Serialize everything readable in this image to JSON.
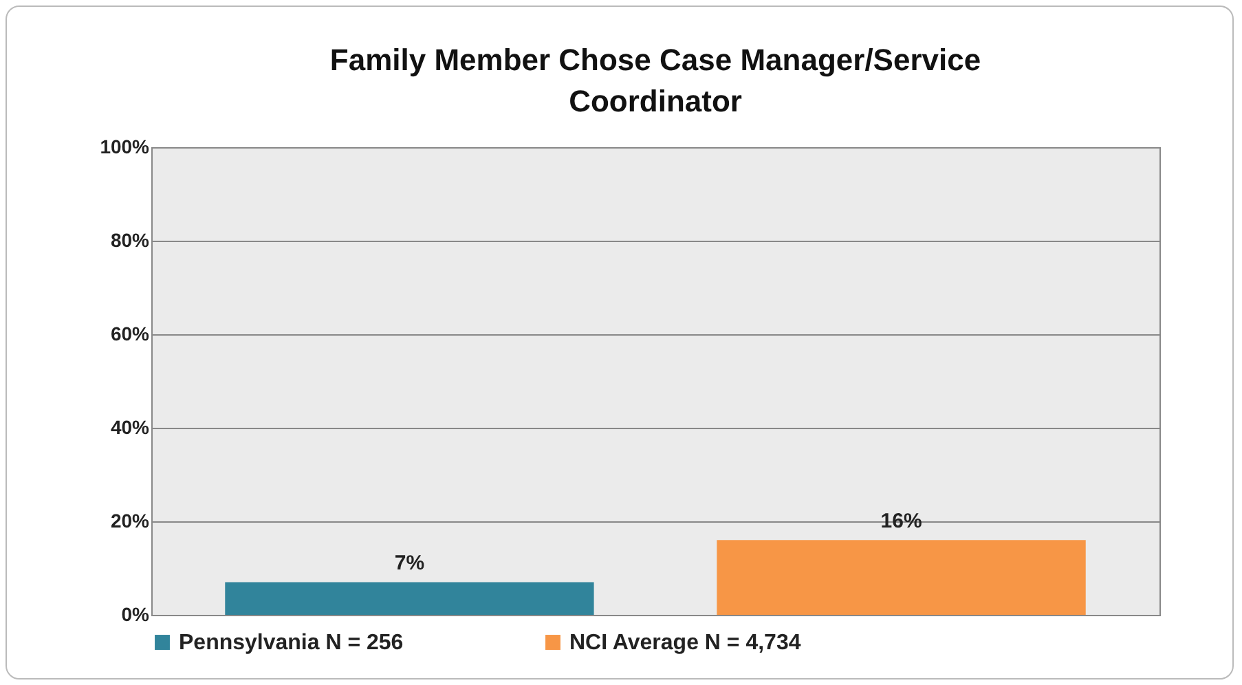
{
  "chart_data": {
    "type": "bar",
    "title": "Family Member Chose Case Manager/Service Coordinator",
    "categories": [
      null
    ],
    "series": [
      {
        "name": "Pennsylvania N = 256",
        "color": "#31849b",
        "values": [
          7
        ],
        "value_labels": [
          "7%"
        ]
      },
      {
        "name": "NCI Average N = 4,734",
        "color": "#f79646",
        "values": [
          16
        ],
        "value_labels": [
          "16%"
        ]
      }
    ],
    "ylim": [
      0,
      100
    ],
    "yticks": [
      {
        "value": 0,
        "label": "0%"
      },
      {
        "value": 20,
        "label": "20%"
      },
      {
        "value": 40,
        "label": "40%"
      },
      {
        "value": 60,
        "label": "60%"
      },
      {
        "value": 80,
        "label": "80%"
      },
      {
        "value": 100,
        "label": "100%"
      }
    ],
    "grid": "y",
    "legend": "bottom",
    "tick_labels": "y"
  }
}
